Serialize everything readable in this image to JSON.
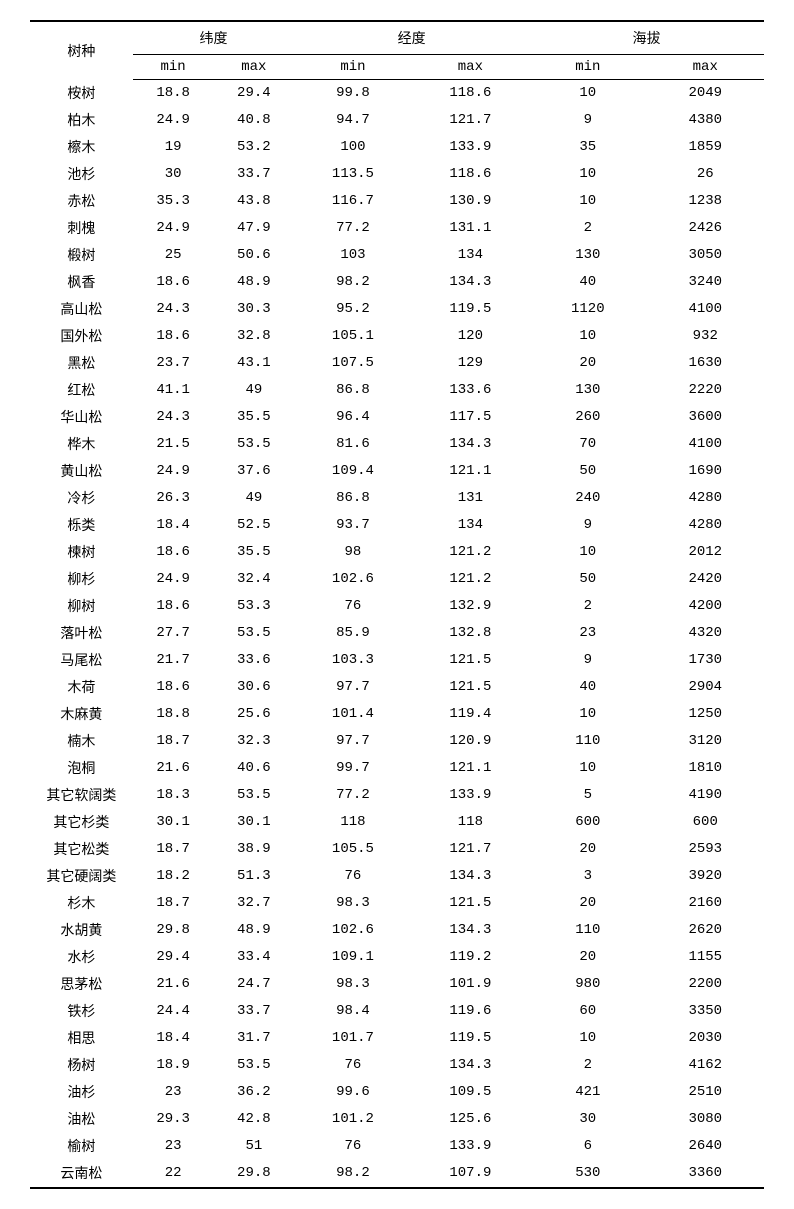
{
  "table": {
    "headers": {
      "species": "树种",
      "latitude": "纬度",
      "longitude": "经度",
      "elevation": "海拔",
      "min": "min",
      "max": "max"
    },
    "columns": [
      "species",
      "lat_min",
      "lat_max",
      "lon_min",
      "lon_max",
      "elev_min",
      "elev_max"
    ],
    "rows": [
      {
        "species": "桉树",
        "lat_min": "18.8",
        "lat_max": "29.4",
        "lon_min": "99.8",
        "lon_max": "118.6",
        "elev_min": "10",
        "elev_max": "2049"
      },
      {
        "species": "柏木",
        "lat_min": "24.9",
        "lat_max": "40.8",
        "lon_min": "94.7",
        "lon_max": "121.7",
        "elev_min": "9",
        "elev_max": "4380"
      },
      {
        "species": "檫木",
        "lat_min": "19",
        "lat_max": "53.2",
        "lon_min": "100",
        "lon_max": "133.9",
        "elev_min": "35",
        "elev_max": "1859"
      },
      {
        "species": "池杉",
        "lat_min": "30",
        "lat_max": "33.7",
        "lon_min": "113.5",
        "lon_max": "118.6",
        "elev_min": "10",
        "elev_max": "26"
      },
      {
        "species": "赤松",
        "lat_min": "35.3",
        "lat_max": "43.8",
        "lon_min": "116.7",
        "lon_max": "130.9",
        "elev_min": "10",
        "elev_max": "1238"
      },
      {
        "species": "刺槐",
        "lat_min": "24.9",
        "lat_max": "47.9",
        "lon_min": "77.2",
        "lon_max": "131.1",
        "elev_min": "2",
        "elev_max": "2426"
      },
      {
        "species": "椴树",
        "lat_min": "25",
        "lat_max": "50.6",
        "lon_min": "103",
        "lon_max": "134",
        "elev_min": "130",
        "elev_max": "3050"
      },
      {
        "species": "枫香",
        "lat_min": "18.6",
        "lat_max": "48.9",
        "lon_min": "98.2",
        "lon_max": "134.3",
        "elev_min": "40",
        "elev_max": "3240"
      },
      {
        "species": "高山松",
        "lat_min": "24.3",
        "lat_max": "30.3",
        "lon_min": "95.2",
        "lon_max": "119.5",
        "elev_min": "1120",
        "elev_max": "4100"
      },
      {
        "species": "国外松",
        "lat_min": "18.6",
        "lat_max": "32.8",
        "lon_min": "105.1",
        "lon_max": "120",
        "elev_min": "10",
        "elev_max": "932"
      },
      {
        "species": "黑松",
        "lat_min": "23.7",
        "lat_max": "43.1",
        "lon_min": "107.5",
        "lon_max": "129",
        "elev_min": "20",
        "elev_max": "1630"
      },
      {
        "species": "红松",
        "lat_min": "41.1",
        "lat_max": "49",
        "lon_min": "86.8",
        "lon_max": "133.6",
        "elev_min": "130",
        "elev_max": "2220"
      },
      {
        "species": "华山松",
        "lat_min": "24.3",
        "lat_max": "35.5",
        "lon_min": "96.4",
        "lon_max": "117.5",
        "elev_min": "260",
        "elev_max": "3600"
      },
      {
        "species": "桦木",
        "lat_min": "21.5",
        "lat_max": "53.5",
        "lon_min": "81.6",
        "lon_max": "134.3",
        "elev_min": "70",
        "elev_max": "4100"
      },
      {
        "species": "黄山松",
        "lat_min": "24.9",
        "lat_max": "37.6",
        "lon_min": "109.4",
        "lon_max": "121.1",
        "elev_min": "50",
        "elev_max": "1690"
      },
      {
        "species": "冷杉",
        "lat_min": "26.3",
        "lat_max": "49",
        "lon_min": "86.8",
        "lon_max": "131",
        "elev_min": "240",
        "elev_max": "4280"
      },
      {
        "species": "栎类",
        "lat_min": "18.4",
        "lat_max": "52.5",
        "lon_min": "93.7",
        "lon_max": "134",
        "elev_min": "9",
        "elev_max": "4280"
      },
      {
        "species": "楝树",
        "lat_min": "18.6",
        "lat_max": "35.5",
        "lon_min": "98",
        "lon_max": "121.2",
        "elev_min": "10",
        "elev_max": "2012"
      },
      {
        "species": "柳杉",
        "lat_min": "24.9",
        "lat_max": "32.4",
        "lon_min": "102.6",
        "lon_max": "121.2",
        "elev_min": "50",
        "elev_max": "2420"
      },
      {
        "species": "柳树",
        "lat_min": "18.6",
        "lat_max": "53.3",
        "lon_min": "76",
        "lon_max": "132.9",
        "elev_min": "2",
        "elev_max": "4200"
      },
      {
        "species": "落叶松",
        "lat_min": "27.7",
        "lat_max": "53.5",
        "lon_min": "85.9",
        "lon_max": "132.8",
        "elev_min": "23",
        "elev_max": "4320"
      },
      {
        "species": "马尾松",
        "lat_min": "21.7",
        "lat_max": "33.6",
        "lon_min": "103.3",
        "lon_max": "121.5",
        "elev_min": "9",
        "elev_max": "1730"
      },
      {
        "species": "木荷",
        "lat_min": "18.6",
        "lat_max": "30.6",
        "lon_min": "97.7",
        "lon_max": "121.5",
        "elev_min": "40",
        "elev_max": "2904"
      },
      {
        "species": "木麻黄",
        "lat_min": "18.8",
        "lat_max": "25.6",
        "lon_min": "101.4",
        "lon_max": "119.4",
        "elev_min": "10",
        "elev_max": "1250"
      },
      {
        "species": "楠木",
        "lat_min": "18.7",
        "lat_max": "32.3",
        "lon_min": "97.7",
        "lon_max": "120.9",
        "elev_min": "110",
        "elev_max": "3120"
      },
      {
        "species": "泡桐",
        "lat_min": "21.6",
        "lat_max": "40.6",
        "lon_min": "99.7",
        "lon_max": "121.1",
        "elev_min": "10",
        "elev_max": "1810"
      },
      {
        "species": "其它软阔类",
        "lat_min": "18.3",
        "lat_max": "53.5",
        "lon_min": "77.2",
        "lon_max": "133.9",
        "elev_min": "5",
        "elev_max": "4190"
      },
      {
        "species": "其它杉类",
        "lat_min": "30.1",
        "lat_max": "30.1",
        "lon_min": "118",
        "lon_max": "118",
        "elev_min": "600",
        "elev_max": "600"
      },
      {
        "species": "其它松类",
        "lat_min": "18.7",
        "lat_max": "38.9",
        "lon_min": "105.5",
        "lon_max": "121.7",
        "elev_min": "20",
        "elev_max": "2593"
      },
      {
        "species": "其它硬阔类",
        "lat_min": "18.2",
        "lat_max": "51.3",
        "lon_min": "76",
        "lon_max": "134.3",
        "elev_min": "3",
        "elev_max": "3920"
      },
      {
        "species": "杉木",
        "lat_min": "18.7",
        "lat_max": "32.7",
        "lon_min": "98.3",
        "lon_max": "121.5",
        "elev_min": "20",
        "elev_max": "2160"
      },
      {
        "species": "水胡黄",
        "lat_min": "29.8",
        "lat_max": "48.9",
        "lon_min": "102.6",
        "lon_max": "134.3",
        "elev_min": "110",
        "elev_max": "2620"
      },
      {
        "species": "水杉",
        "lat_min": "29.4",
        "lat_max": "33.4",
        "lon_min": "109.1",
        "lon_max": "119.2",
        "elev_min": "20",
        "elev_max": "1155"
      },
      {
        "species": "思茅松",
        "lat_min": "21.6",
        "lat_max": "24.7",
        "lon_min": "98.3",
        "lon_max": "101.9",
        "elev_min": "980",
        "elev_max": "2200"
      },
      {
        "species": "铁杉",
        "lat_min": "24.4",
        "lat_max": "33.7",
        "lon_min": "98.4",
        "lon_max": "119.6",
        "elev_min": "60",
        "elev_max": "3350"
      },
      {
        "species": "相思",
        "lat_min": "18.4",
        "lat_max": "31.7",
        "lon_min": "101.7",
        "lon_max": "119.5",
        "elev_min": "10",
        "elev_max": "2030"
      },
      {
        "species": "杨树",
        "lat_min": "18.9",
        "lat_max": "53.5",
        "lon_min": "76",
        "lon_max": "134.3",
        "elev_min": "2",
        "elev_max": "4162"
      },
      {
        "species": "油杉",
        "lat_min": "23",
        "lat_max": "36.2",
        "lon_min": "99.6",
        "lon_max": "109.5",
        "elev_min": "421",
        "elev_max": "2510"
      },
      {
        "species": "油松",
        "lat_min": "29.3",
        "lat_max": "42.8",
        "lon_min": "101.2",
        "lon_max": "125.6",
        "elev_min": "30",
        "elev_max": "3080"
      },
      {
        "species": "榆树",
        "lat_min": "23",
        "lat_max": "51",
        "lon_min": "76",
        "lon_max": "133.9",
        "elev_min": "6",
        "elev_max": "2640"
      },
      {
        "species": "云南松",
        "lat_min": "22",
        "lat_max": "29.8",
        "lon_min": "98.2",
        "lon_max": "107.9",
        "elev_min": "530",
        "elev_max": "3360"
      }
    ]
  },
  "colors": {
    "background": "#ffffff",
    "text": "#000000",
    "border": "#000000"
  },
  "typography": {
    "font_family": "SimSun, 宋体, serif",
    "font_size_pt": 11,
    "number_font": "Consolas, Courier New, monospace"
  }
}
